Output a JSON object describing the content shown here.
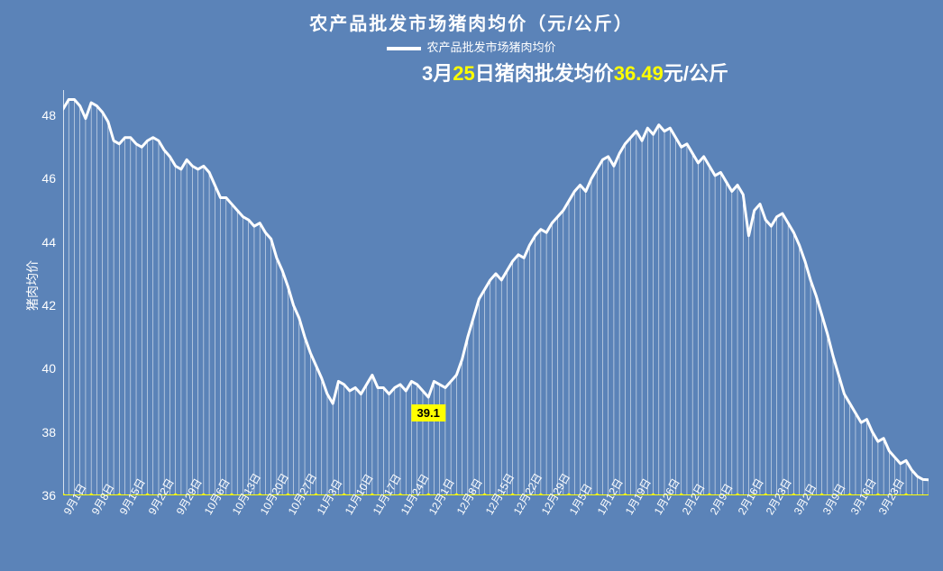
{
  "chart": {
    "type": "line-area",
    "title": "农产品批发市场猪肉均价（元/公斤）",
    "legend_label": "农产品批发市场猪肉均价",
    "highlight": {
      "prefix": "3月",
      "day": "25",
      "mid": "日猪肉批发均价",
      "value": "36.49",
      "suffix": "元/公斤"
    },
    "y_axis_title": "猪肉均价",
    "background_color": "#5b83b8",
    "line_color": "#ffffff",
    "line_width": 3,
    "drop_line_color": "#ffffff",
    "drop_line_width": 0.6,
    "baseline_color": "#ffff00",
    "baseline_width": 2,
    "baseline_marker_color": "#ffff00",
    "baseline_marker_radius": 2.2,
    "axis_color": "#ffffff",
    "y_min": 36,
    "y_max": 48.8,
    "y_ticks": [
      36,
      38,
      40,
      42,
      44,
      46,
      48
    ],
    "x_tick_labels": [
      "9月1日",
      "9月8日",
      "9月15日",
      "9月22日",
      "9月29日",
      "10月6日",
      "10月13日",
      "10月20日",
      "10月27日",
      "11月3日",
      "11月10日",
      "11月17日",
      "11月24日",
      "12月1日",
      "12月8日",
      "12月15日",
      "12月22日",
      "12月29日",
      "1月5日",
      "1月12日",
      "1月19日",
      "1月26日",
      "2月2日",
      "2月9日",
      "2月16日",
      "2月23日",
      "3月2日",
      "3月9日",
      "3月16日",
      "3月23日"
    ],
    "x_tick_interval": 5,
    "callout": {
      "index": 65,
      "label": "39.1"
    },
    "series": [
      48.2,
      48.5,
      48.5,
      48.3,
      47.9,
      48.4,
      48.3,
      48.1,
      47.8,
      47.2,
      47.1,
      47.3,
      47.3,
      47.1,
      47.0,
      47.2,
      47.3,
      47.2,
      46.9,
      46.7,
      46.4,
      46.3,
      46.6,
      46.4,
      46.3,
      46.4,
      46.2,
      45.8,
      45.4,
      45.4,
      45.2,
      45.0,
      44.8,
      44.7,
      44.5,
      44.6,
      44.3,
      44.1,
      43.5,
      43.1,
      42.6,
      42.0,
      41.6,
      41.0,
      40.5,
      40.1,
      39.7,
      39.2,
      38.9,
      39.6,
      39.5,
      39.3,
      39.4,
      39.2,
      39.5,
      39.8,
      39.4,
      39.4,
      39.2,
      39.4,
      39.5,
      39.3,
      39.6,
      39.5,
      39.3,
      39.1,
      39.6,
      39.5,
      39.4,
      39.6,
      39.8,
      40.3,
      41.0,
      41.6,
      42.2,
      42.5,
      42.8,
      43.0,
      42.8,
      43.1,
      43.4,
      43.6,
      43.5,
      43.9,
      44.2,
      44.4,
      44.3,
      44.6,
      44.8,
      45.0,
      45.3,
      45.6,
      45.8,
      45.6,
      46.0,
      46.3,
      46.6,
      46.7,
      46.4,
      46.8,
      47.1,
      47.3,
      47.5,
      47.2,
      47.6,
      47.4,
      47.7,
      47.5,
      47.6,
      47.3,
      47.0,
      47.1,
      46.8,
      46.5,
      46.7,
      46.4,
      46.1,
      46.2,
      45.9,
      45.6,
      45.8,
      45.5,
      44.2,
      45.0,
      45.2,
      44.7,
      44.5,
      44.8,
      44.9,
      44.6,
      44.3,
      43.9,
      43.4,
      42.8,
      42.3,
      41.7,
      41.1,
      40.4,
      39.8,
      39.2,
      38.9,
      38.6,
      38.3,
      38.4,
      38.0,
      37.7,
      37.8,
      37.4,
      37.2,
      37.0,
      37.1,
      36.8,
      36.6,
      36.5,
      36.49
    ]
  }
}
